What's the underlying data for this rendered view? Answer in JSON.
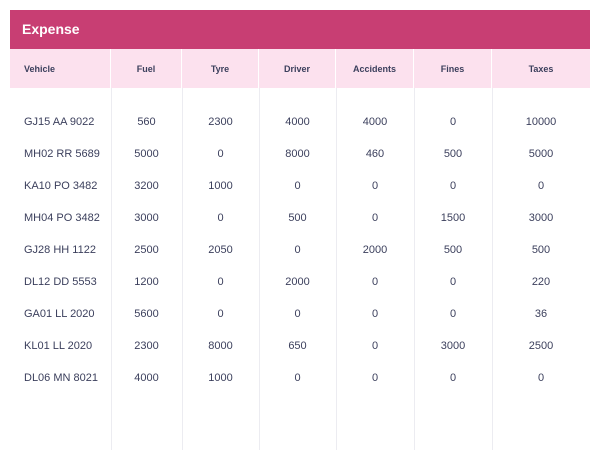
{
  "panel": {
    "title": "Expense",
    "title_color": "#c83e73",
    "header_bg": "#fce1ee"
  },
  "table": {
    "columns": [
      "Vehicle",
      "Fuel",
      "Tyre",
      "Driver",
      "Accidents",
      "Fines",
      "Taxes"
    ],
    "rows": [
      [
        "GJ15 AA 9022",
        "560",
        "2300",
        "4000",
        "4000",
        "0",
        "10000"
      ],
      [
        "MH02 RR 5689",
        "5000",
        "0",
        "8000",
        "460",
        "500",
        "5000"
      ],
      [
        "KA10 PO 3482",
        "3200",
        "1000",
        "0",
        "0",
        "0",
        "0"
      ],
      [
        "MH04 PO 3482",
        "3000",
        "0",
        "500",
        "0",
        "1500",
        "3000"
      ],
      [
        "GJ28 HH 1122",
        "2500",
        "2050",
        "0",
        "2000",
        "500",
        "500"
      ],
      [
        "DL12 DD 5553",
        "1200",
        "0",
        "2000",
        "0",
        "0",
        "220"
      ],
      [
        "GA01 LL 2020",
        "5600",
        "0",
        "0",
        "0",
        "0",
        "36"
      ],
      [
        "KL01 LL 2020",
        "2300",
        "8000",
        "650",
        "0",
        "3000",
        "2500"
      ],
      [
        "DL06 MN 8021",
        "4000",
        "1000",
        "0",
        "0",
        "0",
        "0"
      ]
    ]
  }
}
